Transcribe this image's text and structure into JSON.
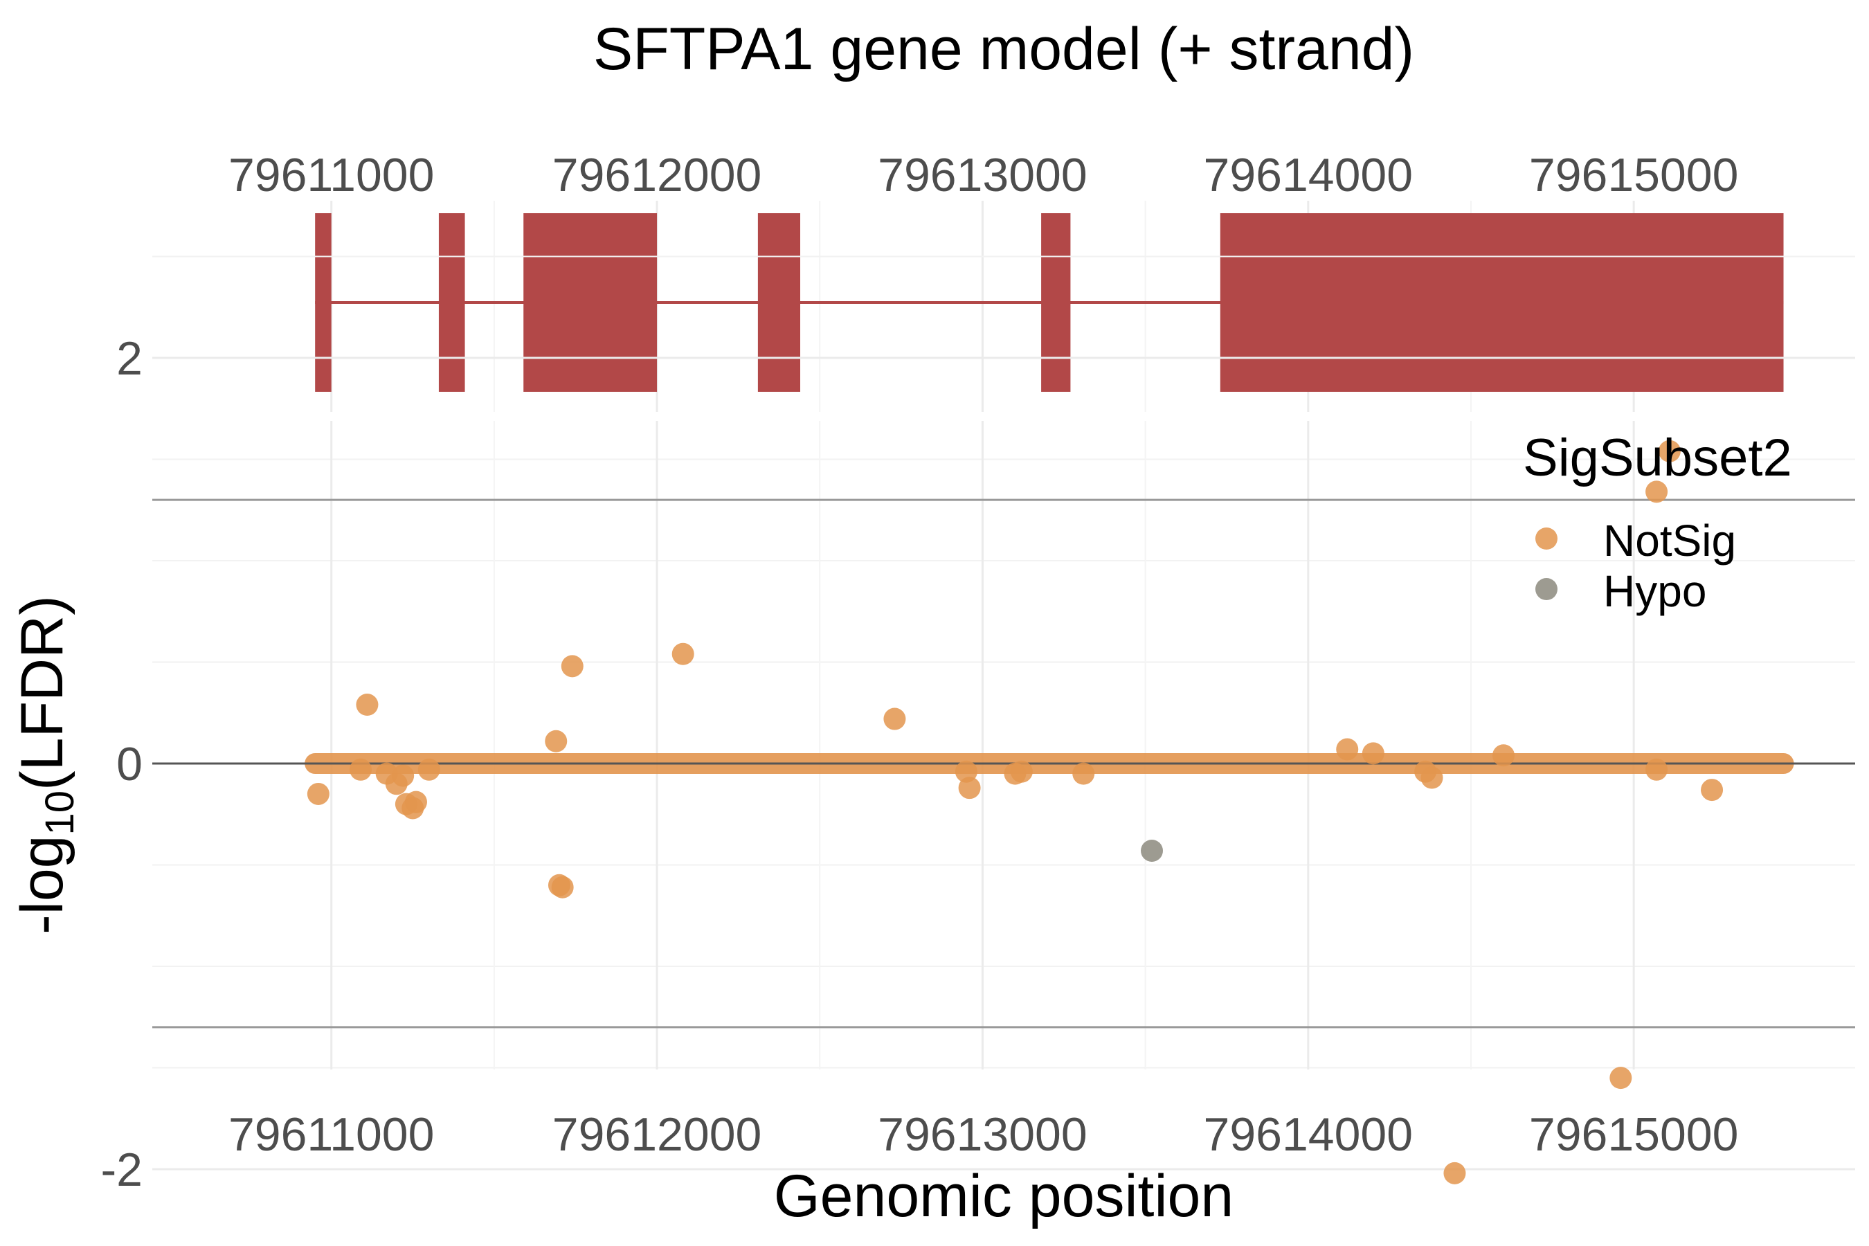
{
  "chart_data": [
    {
      "type": "gene_model",
      "title": "SFTPA1 gene model (+ strand)",
      "xlim": [
        79610450,
        79615680
      ],
      "x_ticks": [
        79611000,
        79612000,
        79613000,
        79614000,
        79615000
      ],
      "x_tick_labels": [
        "79611000",
        "79612000",
        "79613000",
        "79614000",
        "79615000"
      ],
      "exon_color": "#b24848",
      "intron_span": [
        79610950,
        79615460
      ],
      "exons": [
        {
          "start": 79610950,
          "end": 79611000
        },
        {
          "start": 79611330,
          "end": 79611410
        },
        {
          "start": 79611590,
          "end": 79612000
        },
        {
          "start": 79612310,
          "end": 79612440
        },
        {
          "start": 79613180,
          "end": 79613270
        },
        {
          "start": 79613730,
          "end": 79615460
        }
      ]
    },
    {
      "type": "scatter",
      "xlabel": "Genomic position",
      "ylabel": "-log10(LFDR)",
      "xlim": [
        79610450,
        79615680
      ],
      "ylim": [
        -3.1,
        3.1
      ],
      "x_ticks": [
        79611000,
        79612000,
        79613000,
        79614000,
        79615000
      ],
      "x_tick_labels": [
        "79611000",
        "79612000",
        "79613000",
        "79614000",
        "79615000"
      ],
      "y_ticks": [
        -2,
        0,
        2
      ],
      "y_tick_labels": [
        "-2",
        "0",
        "2"
      ],
      "grid": true,
      "hlines": [
        {
          "y": 1.3,
          "color": "#999999"
        },
        {
          "y": -1.3,
          "color": "#999999"
        },
        {
          "y": 0,
          "color": "#555555"
        }
      ],
      "legend": {
        "title": "SigSubset2",
        "position": "top-right"
      },
      "baseline": {
        "y": 0,
        "x_start": 79610950,
        "x_end": 79615460,
        "color": "#e3954e"
      },
      "series": [
        {
          "name": "NotSig",
          "color": "#e3954e",
          "points": [
            {
              "x": 79610960,
              "y": -0.15
            },
            {
              "x": 79611090,
              "y": -0.03
            },
            {
              "x": 79611110,
              "y": 0.29
            },
            {
              "x": 79611170,
              "y": -0.05
            },
            {
              "x": 79611200,
              "y": -0.1
            },
            {
              "x": 79611220,
              "y": -0.06
            },
            {
              "x": 79611230,
              "y": -0.2
            },
            {
              "x": 79611250,
              "y": -0.22
            },
            {
              "x": 79611260,
              "y": -0.19
            },
            {
              "x": 79611300,
              "y": -0.03
            },
            {
              "x": 79611690,
              "y": 0.11
            },
            {
              "x": 79611700,
              "y": -0.6
            },
            {
              "x": 79611710,
              "y": -0.61
            },
            {
              "x": 79611740,
              "y": 0.48
            },
            {
              "x": 79612080,
              "y": 0.54
            },
            {
              "x": 79612730,
              "y": 0.22
            },
            {
              "x": 79612950,
              "y": -0.04
            },
            {
              "x": 79612960,
              "y": -0.12
            },
            {
              "x": 79613100,
              "y": -0.05
            },
            {
              "x": 79613120,
              "y": -0.04
            },
            {
              "x": 79613310,
              "y": -0.05
            },
            {
              "x": 79614120,
              "y": 0.07
            },
            {
              "x": 79614200,
              "y": 0.05
            },
            {
              "x": 79614360,
              "y": -0.04
            },
            {
              "x": 79614380,
              "y": -0.07
            },
            {
              "x": 79614450,
              "y": -2.02
            },
            {
              "x": 79614600,
              "y": 0.04
            },
            {
              "x": 79614960,
              "y": -1.55
            },
            {
              "x": 79615070,
              "y": -0.03
            },
            {
              "x": 79615070,
              "y": 1.34
            },
            {
              "x": 79615110,
              "y": 1.54
            },
            {
              "x": 79615240,
              "y": -0.13
            }
          ]
        },
        {
          "name": "Hypo",
          "color": "#8c8a7e",
          "points": [
            {
              "x": 79613520,
              "y": -0.43
            }
          ]
        }
      ]
    }
  ]
}
